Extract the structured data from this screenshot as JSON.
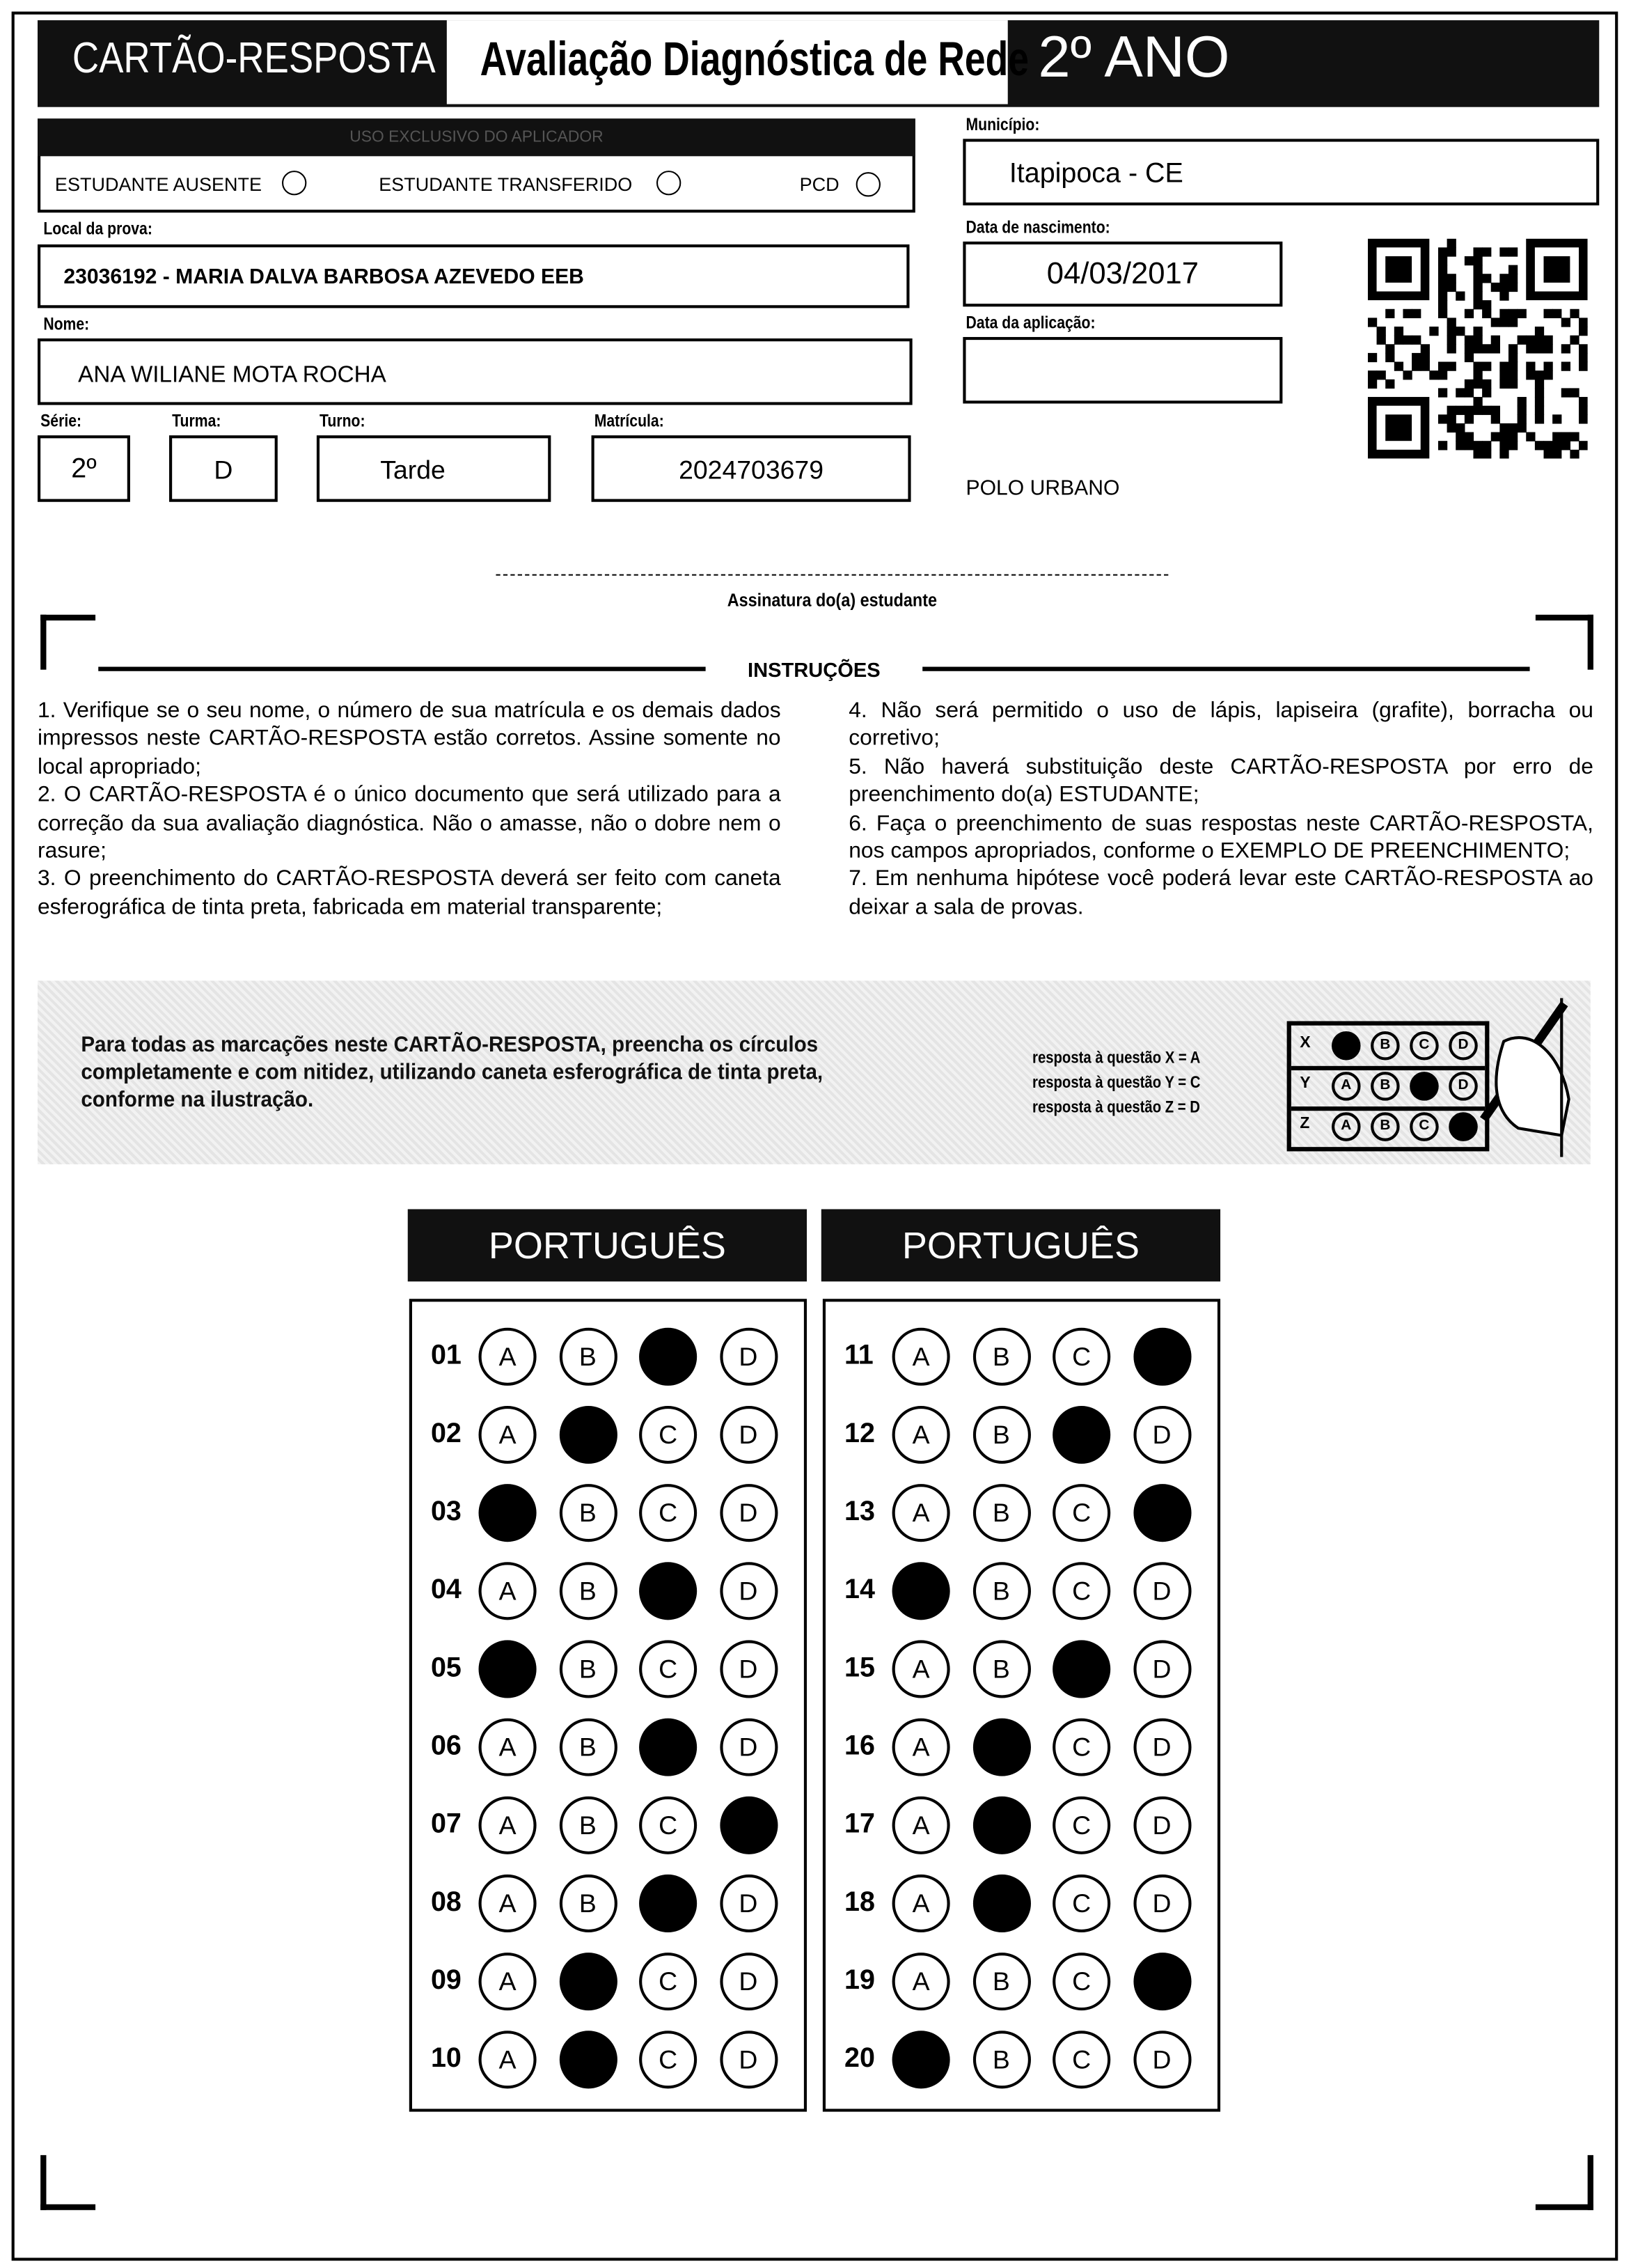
{
  "header": {
    "title": "CARTÃO-RESPOSTA",
    "subtitle": "Avaliação Diagnóstica de Rede",
    "grade": "2º ANO"
  },
  "applicator": {
    "strip": "USO EXCLUSIVO DO APLICADOR",
    "options": [
      "ESTUDANTE AUSENTE",
      "ESTUDANTE TRANSFERIDO",
      "PCD"
    ]
  },
  "fields": {
    "municipio_label": "Município:",
    "municipio": "Itapipoca - CE",
    "local_label": "Local da prova:",
    "local": "23036192 - MARIA DALVA BARBOSA AZEVEDO EEB",
    "nascimento_label": "Data de nascimento:",
    "nascimento": "04/03/2017",
    "nome_label": "Nome:",
    "nome": "ANA WILIANE MOTA ROCHA",
    "aplicacao_label": "Data da aplicação:",
    "aplicacao": "",
    "serie_label": "Série:",
    "serie": "2º",
    "turma_label": "Turma:",
    "turma": "D",
    "turno_label": "Turno:",
    "turno": "Tarde",
    "matricula_label": "Matrícula:",
    "matricula": "2024703679",
    "polo": "POLO URBANO"
  },
  "signature_label": "Assinatura do(a) estudante",
  "instructions": {
    "title": "INSTRUÇÕES",
    "left": [
      "1. Verifique se o seu nome, o número de sua matrícula e os demais dados impressos neste CARTÃO-RESPOSTA estão corretos. Assine somente no local apropriado;",
      "2. O CARTÃO-RESPOSTA é o único documento que será utilizado para a correção da sua avaliação diagnóstica. Não o amasse, não o dobre nem o rasure;",
      "3. O preenchimento do CARTÃO-RESPOSTA deverá ser feito com caneta esferográfica de tinta preta, fabricada em material transparente;"
    ],
    "right": [
      "4. Não será permitido o uso de lápis, lapiseira (grafite), borracha ou corretivo;",
      "5. Não haverá substituição deste CARTÃO-RESPOSTA por erro de preenchimento do(a) ESTUDANTE;",
      "6. Faça o preenchimento de suas respostas neste CARTÃO-RESPOSTA, nos campos apropriados, conforme o EXEMPLO DE PREENCHIMENTO;",
      "7. Em nenhuma hipótese você poderá levar este CARTÃO-RESPOSTA ao deixar a sala de provas."
    ]
  },
  "example": {
    "text": "Para todas as marcações neste CARTÃO-RESPOSTA, preencha os círculos completamente e com nitidez, utilizando caneta esferográfica de tinta preta, conforme na ilustração.",
    "legend": [
      "resposta à questão X = A",
      "resposta à questão Y = C",
      "resposta à questão Z = D"
    ],
    "rows": [
      {
        "q": "X",
        "marked": "A"
      },
      {
        "q": "Y",
        "marked": "C"
      },
      {
        "q": "Z",
        "marked": "D"
      }
    ]
  },
  "options": [
    "A",
    "B",
    "C",
    "D"
  ],
  "sections": [
    {
      "subject": "PORTUGUÊS",
      "questions": [
        {
          "n": "01",
          "marked": "C"
        },
        {
          "n": "02",
          "marked": "B"
        },
        {
          "n": "03",
          "marked": "A"
        },
        {
          "n": "04",
          "marked": "C"
        },
        {
          "n": "05",
          "marked": "A"
        },
        {
          "n": "06",
          "marked": "C"
        },
        {
          "n": "07",
          "marked": "D"
        },
        {
          "n": "08",
          "marked": "C"
        },
        {
          "n": "09",
          "marked": "B"
        },
        {
          "n": "10",
          "marked": "B"
        }
      ]
    },
    {
      "subject": "PORTUGUÊS",
      "questions": [
        {
          "n": "11",
          "marked": "D"
        },
        {
          "n": "12",
          "marked": "C"
        },
        {
          "n": "13",
          "marked": "D"
        },
        {
          "n": "14",
          "marked": "A"
        },
        {
          "n": "15",
          "marked": "C"
        },
        {
          "n": "16",
          "marked": "B"
        },
        {
          "n": "17",
          "marked": "B"
        },
        {
          "n": "18",
          "marked": "B"
        },
        {
          "n": "19",
          "marked": "D"
        },
        {
          "n": "20",
          "marked": "A"
        }
      ]
    }
  ]
}
